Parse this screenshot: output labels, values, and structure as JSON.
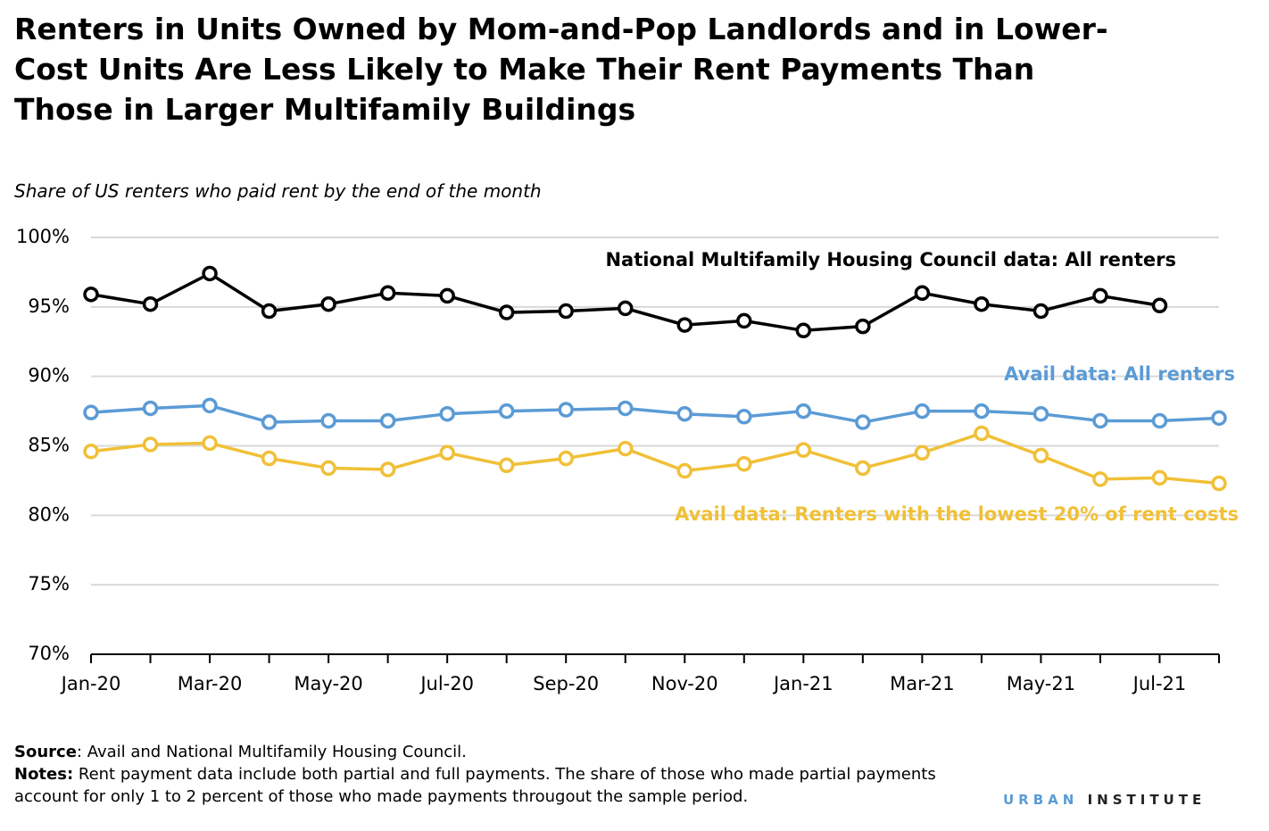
{
  "chart_data": {
    "type": "line",
    "title": "Renters in Units Owned by Mom-and-Pop Landlords and in Lower-Cost Units Are Less Likely to Make Their Rent Payments Than Those in Larger Multifamily Buildings",
    "subtitle": "Share of US renters who paid rent by the end of the month",
    "categories": [
      "Jan-20",
      null,
      "Mar-20",
      null,
      "May-20",
      null,
      "Jul-20",
      null,
      "Sep-20",
      null,
      "Nov-20",
      null,
      "Jan-21",
      null,
      "Mar-21",
      null,
      "May-21",
      null,
      "Jul-21",
      null
    ],
    "series": [
      {
        "name": "National Multifamily Housing Council data: All renters",
        "color": "#000000",
        "values": [
          95.9,
          95.2,
          97.4,
          94.7,
          95.2,
          96.0,
          95.8,
          94.6,
          94.7,
          94.9,
          93.7,
          94.0,
          93.3,
          93.6,
          96.0,
          95.2,
          94.7,
          95.8,
          95.1,
          null
        ]
      },
      {
        "name": "Avail data: All renters",
        "color": "#5b9bd5",
        "values": [
          87.4,
          87.7,
          87.9,
          86.7,
          86.8,
          86.8,
          87.3,
          87.5,
          87.6,
          87.7,
          87.3,
          87.1,
          87.5,
          86.7,
          87.5,
          87.5,
          87.3,
          86.8,
          86.8,
          87.0
        ]
      },
      {
        "name": "Avail data: Renters with the lowest 20% of rent costs",
        "color": "#f0c037",
        "values": [
          84.6,
          85.1,
          85.2,
          84.1,
          83.4,
          83.3,
          84.5,
          83.6,
          84.1,
          84.8,
          83.2,
          83.7,
          84.7,
          83.4,
          84.5,
          85.9,
          84.3,
          82.6,
          82.7,
          82.3
        ]
      }
    ],
    "ylim": [
      70,
      100
    ],
    "yticks": [
      {
        "value": 70,
        "label": "70%"
      },
      {
        "value": 75,
        "label": "75%"
      },
      {
        "value": 80,
        "label": "80%"
      },
      {
        "value": 85,
        "label": "85%"
      },
      {
        "value": 90,
        "label": "90%"
      },
      {
        "value": 95,
        "label": "95%"
      },
      {
        "value": 100,
        "label": "100%"
      }
    ],
    "grid": true
  },
  "footer": {
    "source_label": "Source",
    "source_text": ": Avail and National Multifamily Housing Council.",
    "notes_label": "Notes:",
    "notes_text": " Rent payment data include both partial and full payments. The share of those who made partial payments account for only 1 to 2 percent of those who made payments througout the sample period.",
    "logo_urban": "URBAN",
    "logo_institute": "INSTITUTE"
  }
}
